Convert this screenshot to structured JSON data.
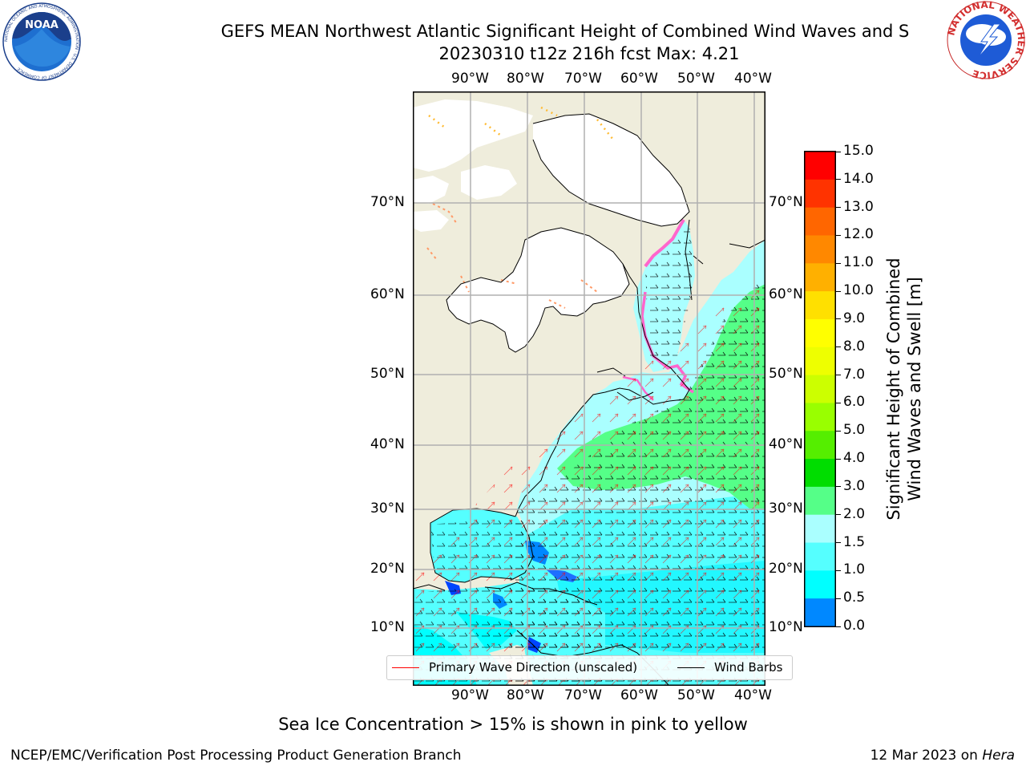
{
  "header": {
    "title_line1": "GEFS MEAN Northwest Atlantic Significant Height of Combined Wind Waves and S",
    "title_line2": "20230310 t12z 216h fcst   Max: 4.21"
  },
  "logos": {
    "left": {
      "icon": "noaa-logo",
      "text": "NOAA",
      "ring_text": "NATIONAL OCEANIC AND ATMOSPHERIC ADMINISTRATION · U.S. DEPARTMENT OF COMMERCE"
    },
    "right": {
      "icon": "nws-logo",
      "ring_text": "NATIONAL WEATHER SERVICE"
    }
  },
  "map": {
    "lon_labels": [
      "90°W",
      "80°W",
      "70°W",
      "60°W",
      "50°W",
      "40°W"
    ],
    "lat_labels": [
      "70°N",
      "60°N",
      "50°N",
      "40°N",
      "30°N",
      "20°N",
      "10°N"
    ],
    "colors": {
      "land": "#efeddc",
      "ice_edge": "#ff66cc"
    }
  },
  "colorbar": {
    "title_line1": "Significant Height of Combined",
    "title_line2": "Wind Waves and Swell [m]",
    "ticks": [
      "15.0",
      "14.0",
      "13.0",
      "12.0",
      "11.0",
      "10.0",
      "9.0",
      "8.0",
      "7.0",
      "6.0",
      "5.0",
      "4.0",
      "3.0",
      "2.0",
      "1.5",
      "1.0",
      "0.5",
      "0.0"
    ],
    "colors": [
      "#ff0000",
      "#ff3300",
      "#ff6600",
      "#ff8800",
      "#ffb000",
      "#ffe000",
      "#ffff00",
      "#eeff00",
      "#ccff00",
      "#99ff00",
      "#55ee00",
      "#00dd00",
      "#55ff88",
      "#aaffff",
      "#55ffff",
      "#00ffff",
      "#0088ff",
      "#0000ff"
    ]
  },
  "legend": {
    "wave_dir": {
      "label": "Primary Wave Direction (unscaled)",
      "color": "#ff0000"
    },
    "wind": {
      "label": "Wind Barbs",
      "color": "#000000"
    }
  },
  "caption": "Sea Ice Concentration > 15% is shown in pink to yellow",
  "footer": {
    "left": "NCEP/EMC/Verification Post Processing Product Generation Branch",
    "right_date": "12 Mar 2023 on ",
    "right_host": "Hera"
  }
}
